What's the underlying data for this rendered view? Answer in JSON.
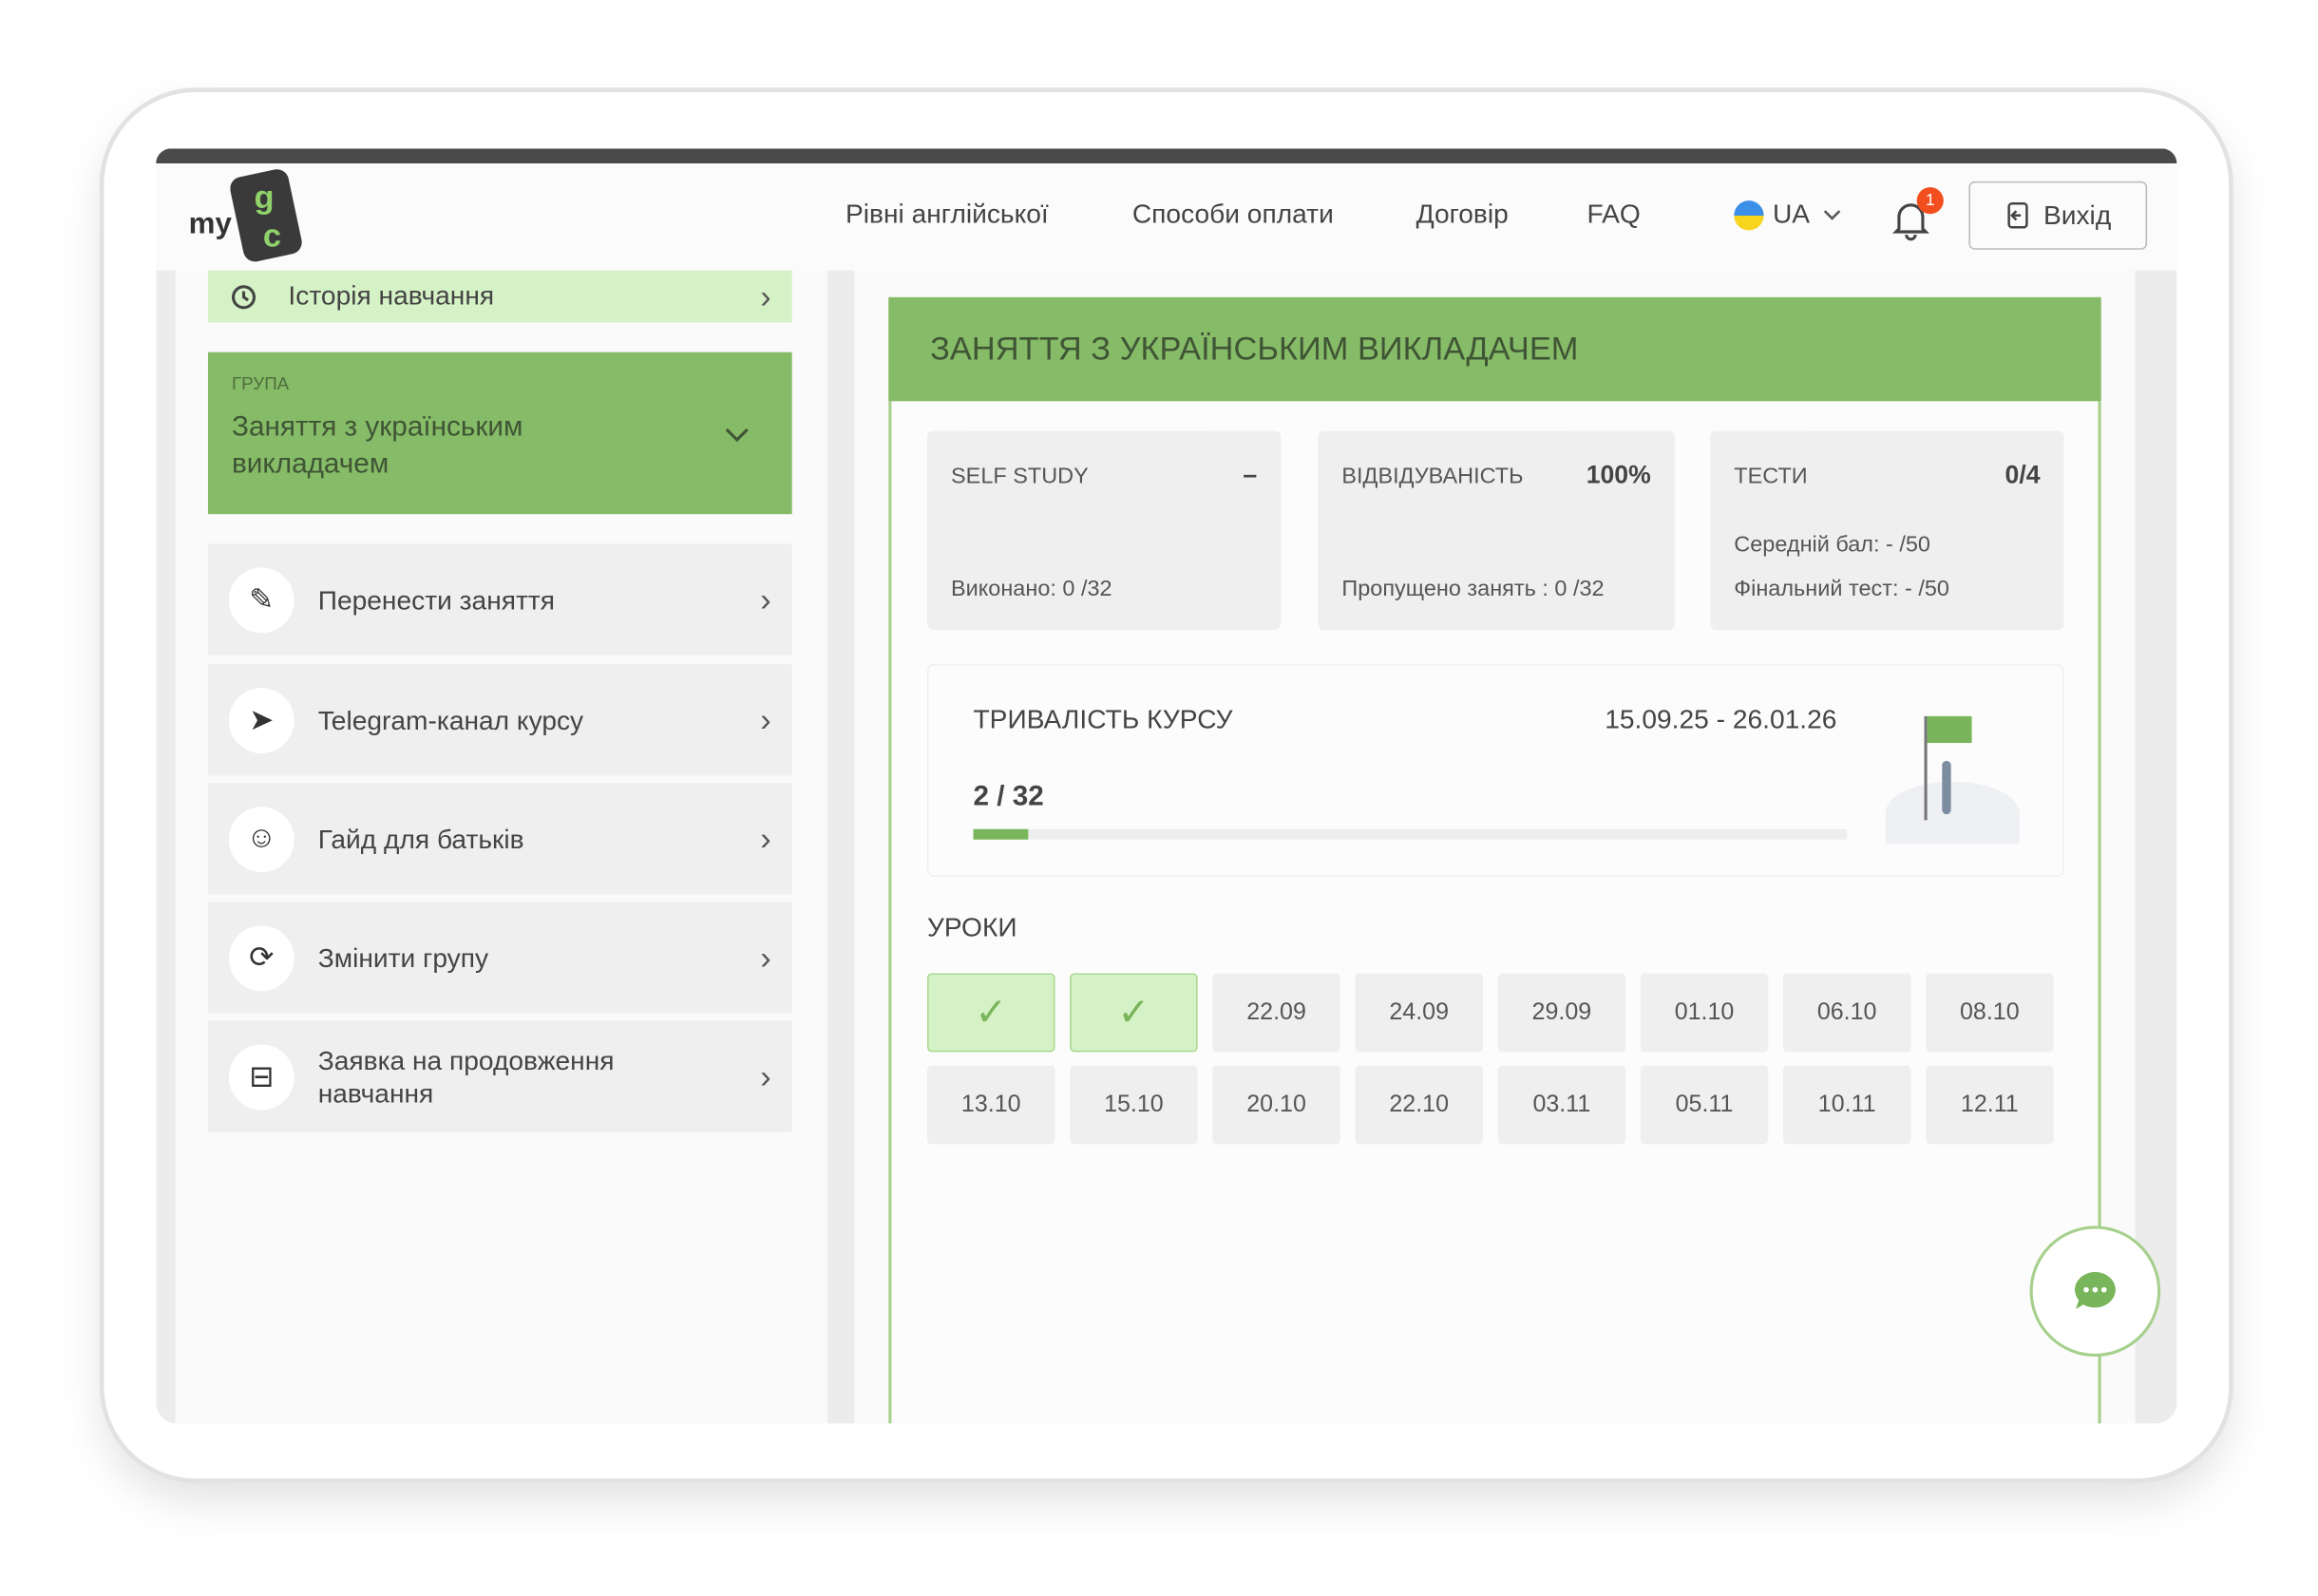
{
  "header": {
    "logo_text": "my",
    "logo_letters": "gc",
    "nav": [
      "Рівні англійської",
      "Способи оплати",
      "Договір",
      "FAQ"
    ],
    "language": "UA",
    "notifications_count": "1",
    "logout_label": "Вихід"
  },
  "sidebar": {
    "history_label": "Історія навчання",
    "group_caption": "ГРУПА",
    "group_name": "Заняття з українським викладачем",
    "items": [
      {
        "label": "Перенести заняття",
        "icon": "edit-icon"
      },
      {
        "label": "Telegram-канал курсу",
        "icon": "telegram-icon"
      },
      {
        "label": "Гайд для батьків",
        "icon": "people-icon"
      },
      {
        "label": "Змінити групу",
        "icon": "refresh-icon"
      },
      {
        "label": "Заявка на продовження навчання",
        "icon": "archive-icon"
      }
    ]
  },
  "main": {
    "title": "ЗАНЯТТЯ З УКРАЇНСЬКИМ ВИКЛАДАЧЕМ",
    "self_study": {
      "label": "SELF STUDY",
      "value": "–",
      "done": "Виконано: 0 /32"
    },
    "attendance": {
      "label": "ВІДВІДУВАНІСТЬ",
      "value": "100%",
      "missed": "Пропущено занять : 0 /32"
    },
    "tests": {
      "label": "ТЕСТИ",
      "value": "0/4",
      "avg": "Середній бал: - /50",
      "final": "Фінальний тест: - /50"
    },
    "duration": {
      "label": "ТРИВАЛІСТЬ КУРСУ",
      "dates": "15.09.25 - 26.01.26",
      "progress_text": "2 / 32",
      "progress_fraction": 0.0625
    },
    "lessons_title": "УРОКИ",
    "lessons": [
      {
        "date": "",
        "done": true
      },
      {
        "date": "",
        "done": true
      },
      {
        "date": "22.09"
      },
      {
        "date": "24.09"
      },
      {
        "date": "29.09"
      },
      {
        "date": "01.10"
      },
      {
        "date": "06.10"
      },
      {
        "date": "08.10"
      },
      {
        "date": "13.10"
      },
      {
        "date": "15.10"
      },
      {
        "date": "20.10"
      },
      {
        "date": "22.10"
      },
      {
        "date": "03.11"
      },
      {
        "date": "05.11"
      },
      {
        "date": "10.11"
      },
      {
        "date": "12.11"
      }
    ]
  },
  "colors": {
    "accent": "#86bb67",
    "accent_light": "#d5f2c6",
    "badge": "#f24e1e"
  }
}
